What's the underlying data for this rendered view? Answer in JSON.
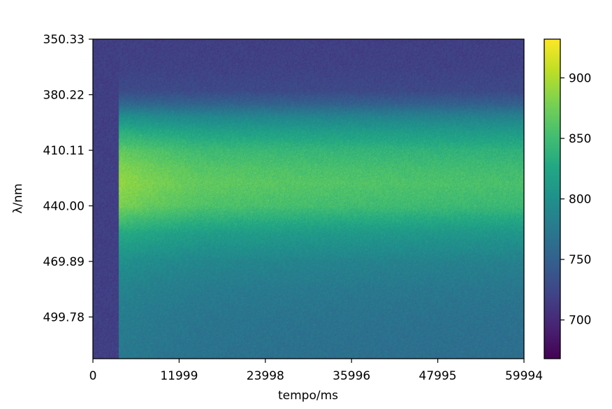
{
  "chart_data": {
    "type": "heatmap",
    "title": "",
    "xlabel": "tempo/ms",
    "ylabel": "λ/nm",
    "xlim": [
      0,
      59994
    ],
    "ylim": [
      350.33,
      522.2
    ],
    "y_inverted": true,
    "x_ticks": [
      0,
      11999,
      23998,
      35996,
      47995,
      59994
    ],
    "x_tick_labels": [
      "0",
      "11999",
      "23998",
      "35996",
      "47995",
      "59994"
    ],
    "y_ticks": [
      350.33,
      380.22,
      410.11,
      440.0,
      469.89,
      499.78
    ],
    "y_tick_labels": [
      "350.33",
      "380.22",
      "410.11",
      "440.00",
      "469.89",
      "499.78"
    ],
    "colormap": "viridis",
    "colorbar": {
      "min": 668,
      "max": 932,
      "ticks": [
        700,
        750,
        800,
        850,
        900
      ],
      "tick_labels": [
        "700",
        "750",
        "800",
        "850",
        "900"
      ]
    },
    "onset_time": 3600,
    "baseline_value": 718,
    "spectrum_profile": {
      "wavelength": [
        350.33,
        365,
        378,
        385,
        392,
        400,
        410,
        420,
        428,
        440,
        455,
        470,
        485,
        500,
        522.2
      ],
      "value": [
        718,
        720,
        728,
        752,
        790,
        820,
        848,
        862,
        868,
        858,
        815,
        790,
        778,
        772,
        768
      ]
    },
    "time_profile": {
      "time": [
        3600,
        8000,
        15000,
        30000,
        45000,
        59994
      ],
      "peak_value": [
        890,
        880,
        868,
        862,
        858,
        855
      ]
    },
    "grid": false
  }
}
